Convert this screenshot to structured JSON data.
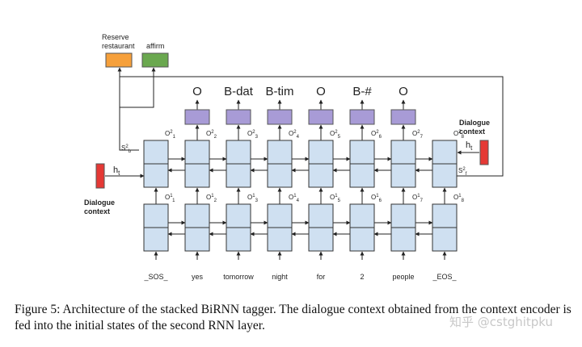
{
  "top_outputs": {
    "intent": {
      "line1": "Reserve",
      "line2": "restaurant",
      "color": "#f6a03b"
    },
    "act": {
      "label": "affirm",
      "color": "#6aa84f"
    }
  },
  "tags": [
    "O",
    "B-dat",
    "B-tim",
    "O",
    "B-#",
    "O"
  ],
  "words": [
    "_SOS_",
    "yes",
    "tomorrow",
    "night",
    "for",
    "2",
    "people",
    "_EOS_"
  ],
  "o2_labels": [
    {
      "base": "O",
      "sup": "2",
      "sub": "1"
    },
    {
      "base": "O",
      "sup": "2",
      "sub": "2"
    },
    {
      "base": "O",
      "sup": "2",
      "sub": "3"
    },
    {
      "base": "O",
      "sup": "2",
      "sub": "4"
    },
    {
      "base": "O",
      "sup": "2",
      "sub": "5"
    },
    {
      "base": "O",
      "sup": "2",
      "sub": "6"
    },
    {
      "base": "O",
      "sup": "2",
      "sub": "7"
    },
    {
      "base": "O",
      "sup": "2",
      "sub": "8"
    }
  ],
  "o1_labels": [
    {
      "base": "O",
      "sup": "1",
      "sub": "1"
    },
    {
      "base": "O",
      "sup": "1",
      "sub": "2"
    },
    {
      "base": "O",
      "sup": "1",
      "sub": "3"
    },
    {
      "base": "O",
      "sup": "1",
      "sub": "4"
    },
    {
      "base": "O",
      "sup": "1",
      "sub": "5"
    },
    {
      "base": "O",
      "sup": "1",
      "sub": "6"
    },
    {
      "base": "O",
      "sup": "1",
      "sub": "7"
    },
    {
      "base": "O",
      "sup": "1",
      "sub": "8"
    }
  ],
  "state_labels": {
    "left": {
      "base": "S",
      "sup": "2",
      "sub": "b"
    },
    "right": {
      "base": "S",
      "sup": "2",
      "sub": "f"
    }
  },
  "context_left": {
    "ht": "h",
    "ht_sub": "t",
    "line1": "Dialogue",
    "line2": "context"
  },
  "context_right": {
    "ht": "h",
    "ht_sub": "t",
    "line1": "Dialogue",
    "line2": "context"
  },
  "colors": {
    "cell_fill": "#cfe0f1",
    "cell_stroke": "#333333",
    "tag_box": "#a89bd6",
    "context_box": "#e53935"
  },
  "caption": "Figure 5:  Architecture of the stacked BiRNN tagger.  The dialogue context obtained from the context encoder is fed into the initial states of the second RNN layer.",
  "watermark": "知乎 @cstghitpku"
}
